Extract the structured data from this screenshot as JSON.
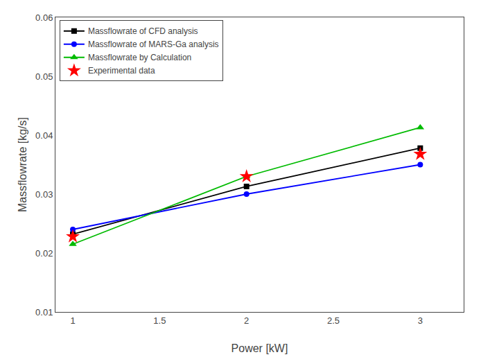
{
  "chart_data": {
    "type": "line",
    "x_label": "Power [kW]",
    "y_label": "Massflowrate [kg/s]",
    "x": [
      1.0,
      2.0,
      3.0
    ],
    "series": [
      {
        "name": "Massflowrate of CFD analysis",
        "color": "#000000",
        "marker": "square",
        "line_style": "solid",
        "values": [
          0.0232,
          0.0313,
          0.0378
        ]
      },
      {
        "name": "Massflowrate of MARS-Ga analysis",
        "color": "#0000FF",
        "marker": "circle",
        "line_style": "solid",
        "values": [
          0.024,
          0.03,
          0.035
        ]
      },
      {
        "name": "Massflowrate by Calculation",
        "color": "#00BB00",
        "marker": "triangle-up",
        "line_style": "solid",
        "values": [
          0.0215,
          0.033,
          0.0413
        ]
      },
      {
        "name": "Experimental data",
        "color": "#FF0000",
        "marker": "star",
        "line_style": "none",
        "values": [
          0.0228,
          0.033,
          0.0368
        ]
      }
    ],
    "xlim": [
      0.9,
      3.25
    ],
    "ylim": [
      0.01,
      0.06
    ],
    "xticks": [
      1.0,
      1.5,
      2.0,
      2.5,
      3.0
    ],
    "yticks": [
      0.01,
      0.02,
      0.03,
      0.04,
      0.05,
      0.06
    ],
    "grid": false,
    "legend": "upper left"
  }
}
